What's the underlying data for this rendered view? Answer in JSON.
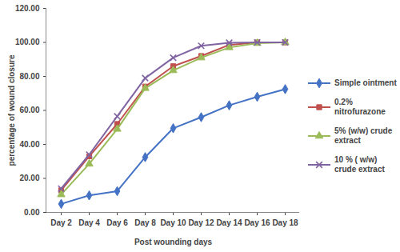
{
  "chart_data": {
    "type": "line",
    "x_label": "Post wounding days",
    "y_label": "percentage of wound closure",
    "categories": [
      "Day 2",
      "Day 4",
      "Day 6",
      "Day 8",
      "Day 10",
      "Day 12",
      "Day 14",
      "Day 16",
      "Day 18"
    ],
    "series": [
      {
        "name": "Simple ointment",
        "color": "#4472c4",
        "marker": "diamond",
        "values": [
          5,
          10,
          12.5,
          32.5,
          49.5,
          56,
          63,
          68,
          72.5
        ]
      },
      {
        "name": "0.2% nitrofurazone",
        "color": "#c0504d",
        "marker": "square",
        "values": [
          13,
          33,
          52,
          74,
          86,
          92,
          98.5,
          100,
          100
        ]
      },
      {
        "name": "5% (w/w) crude extract",
        "color": "#9bbb59",
        "marker": "triangle",
        "values": [
          10.5,
          28.5,
          49,
          73,
          83.5,
          91,
          97,
          99.5,
          100
        ]
      },
      {
        "name": "10 % ( w/w) crude extract",
        "color": "#8064a2",
        "marker": "times",
        "values": [
          14,
          34,
          56.5,
          79,
          91,
          98,
          99.8,
          100,
          100
        ]
      }
    ],
    "ylim": [
      0,
      120
    ],
    "yticks": [
      {
        "value": 0,
        "label": "0.00"
      },
      {
        "value": 20,
        "label": "20.00"
      },
      {
        "value": 40,
        "label": "40.00"
      },
      {
        "value": 60,
        "label": "60.00"
      },
      {
        "value": 80,
        "label": "80.00"
      },
      {
        "value": 100,
        "label": "100.00"
      },
      {
        "value": 120,
        "label": "120.00"
      }
    ],
    "grid": false,
    "legend": "right"
  }
}
